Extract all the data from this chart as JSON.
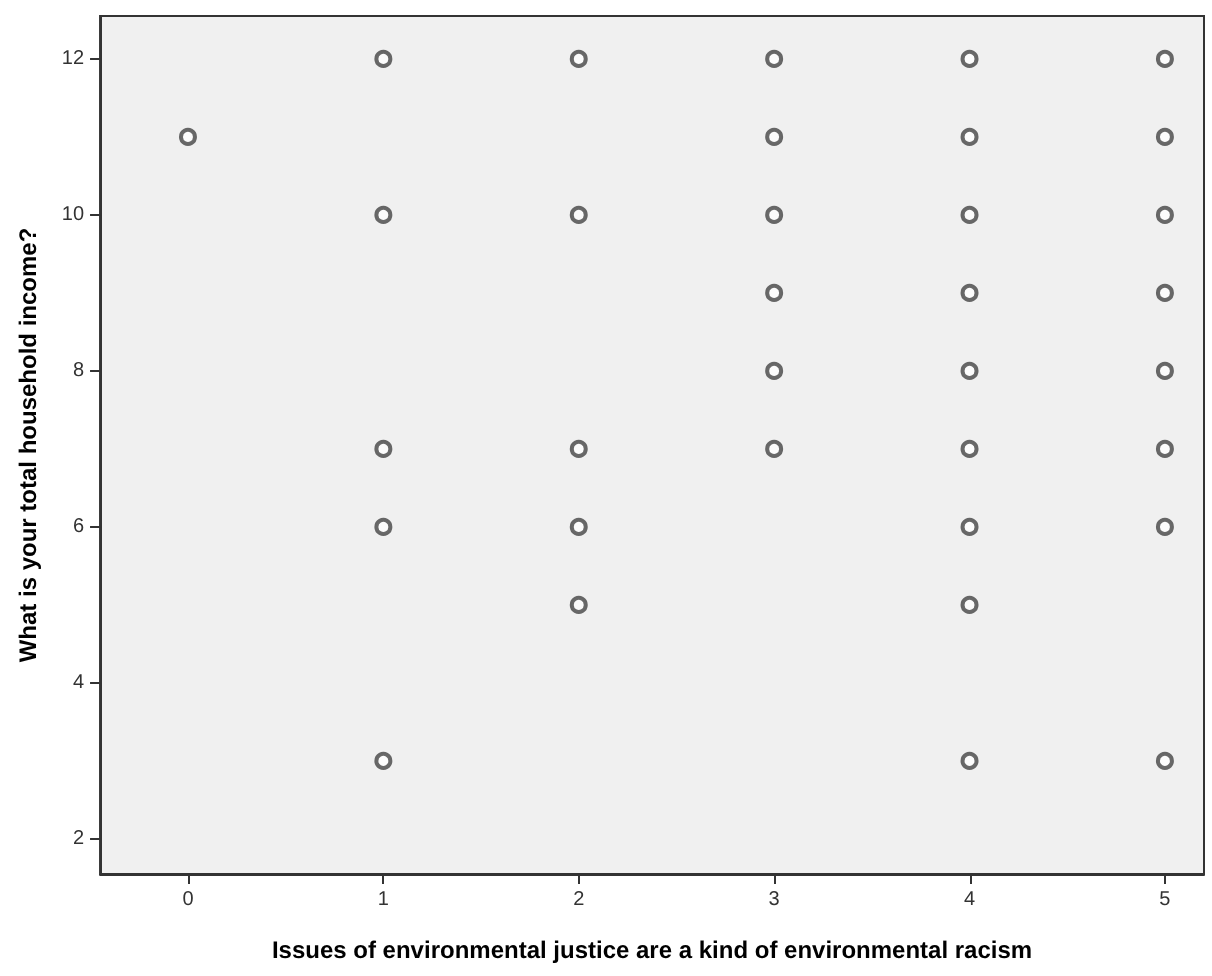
{
  "chart_data": {
    "type": "scatter",
    "xlabel": "Issues of environmental justice are a kind of environmental racism",
    "ylabel": "What is your total household income?",
    "x": [
      0,
      1,
      1,
      1,
      1,
      1,
      2,
      2,
      2,
      2,
      2,
      3,
      3,
      3,
      3,
      3,
      3,
      4,
      4,
      4,
      4,
      4,
      4,
      4,
      4,
      4,
      5,
      5,
      5,
      5,
      5,
      5,
      5,
      5
    ],
    "values": [
      11,
      12,
      10,
      7,
      6,
      3,
      12,
      10,
      7,
      6,
      5,
      12,
      11,
      10,
      9,
      8,
      7,
      12,
      11,
      10,
      9,
      8,
      7,
      6,
      5,
      3,
      12,
      11,
      10,
      9,
      8,
      7,
      6,
      3
    ],
    "color": "#444444",
    "marker": "circle",
    "grid": false,
    "xlim": [
      -0.45,
      5.2
    ],
    "xticks": [
      0,
      1,
      2,
      3,
      4,
      5
    ],
    "ylim": [
      1.55,
      12.55
    ],
    "yticks": [
      2,
      4,
      6,
      8,
      10,
      12
    ]
  }
}
